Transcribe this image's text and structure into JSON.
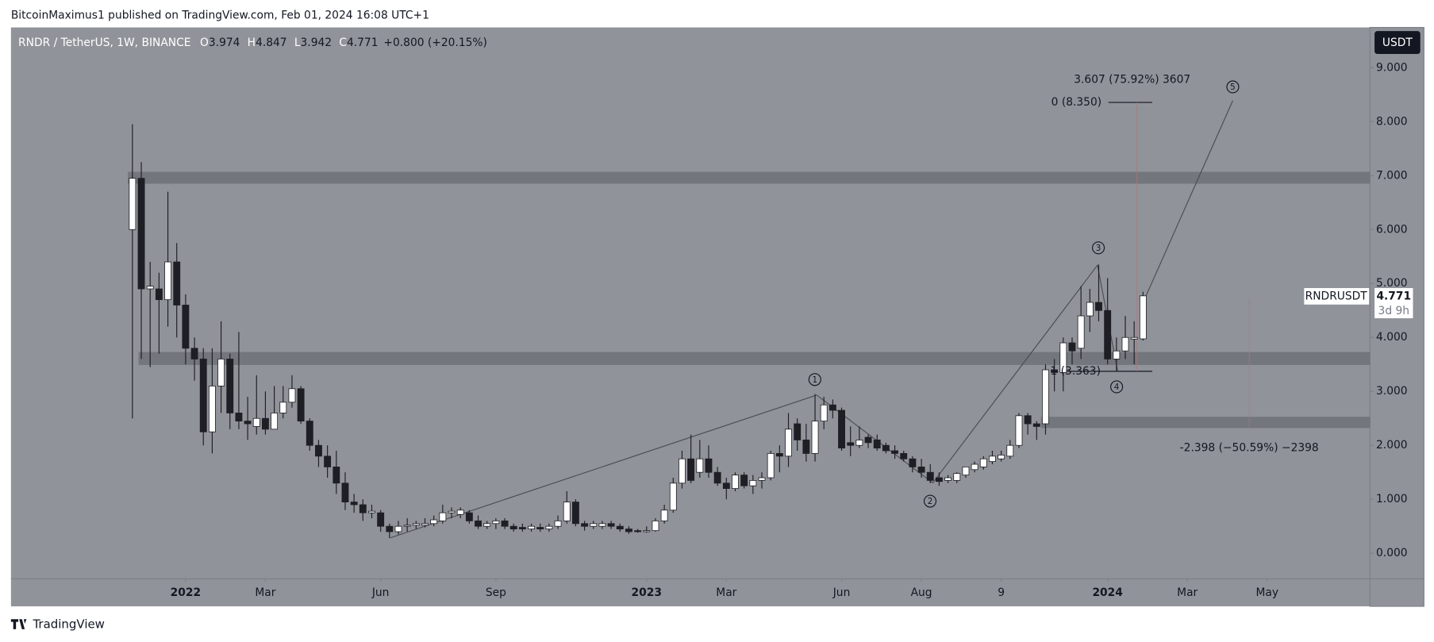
{
  "publisher": "BitcoinMaximus1 published on TradingView.com, Feb 01, 2024 16:08 UTC+1",
  "brand": "TradingView",
  "chart_data": {
    "type": "candlestick",
    "symbol": "RNDR / TetherUS, 1W, BINANCE",
    "header": [
      {
        "label": "O",
        "value": "3.974"
      },
      {
        "label": "H",
        "value": "4.847"
      },
      {
        "label": "L",
        "value": "3.942"
      },
      {
        "label": "C",
        "value": "4.771"
      }
    ],
    "change": "+0.800 (+20.15%)",
    "currency": "USDT",
    "ticker": "RNDRUSDT",
    "last_price": "4.771",
    "countdown": "3d 9h",
    "open": [
      6.0,
      6.95,
      4.9,
      4.9,
      4.7,
      5.4,
      4.6,
      3.8,
      3.6,
      2.25,
      3.1,
      3.6,
      2.6,
      2.45,
      2.35,
      2.5,
      2.3,
      2.6,
      2.8,
      3.05,
      2.45,
      2.0,
      1.8,
      1.6,
      1.3,
      0.95,
      0.9,
      0.75,
      0.75,
      0.5,
      0.4,
      0.5,
      0.52,
      0.52,
      0.55,
      0.6,
      0.75,
      0.72,
      0.75,
      0.6,
      0.5,
      0.55,
      0.6,
      0.5,
      0.48,
      0.45,
      0.48,
      0.45,
      0.5,
      0.6,
      0.95,
      0.55,
      0.5,
      0.5,
      0.55,
      0.5,
      0.45,
      0.42,
      0.4,
      0.42,
      0.6,
      0.8,
      1.3,
      1.75,
      1.5,
      1.75,
      1.5,
      1.3,
      1.2,
      1.45,
      1.25,
      1.35,
      1.4,
      1.85,
      1.8,
      2.4,
      2.1,
      1.85,
      2.45,
      2.75,
      2.65,
      2.05,
      2.0,
      2.15,
      2.1,
      2.0,
      1.9,
      1.85,
      1.75,
      1.6,
      1.5,
      1.4,
      1.35,
      1.35,
      1.45,
      1.55,
      1.6,
      1.7,
      1.75,
      1.8,
      2.0,
      2.55,
      2.4,
      2.4,
      3.4,
      3.35,
      3.9,
      3.8,
      4.4,
      4.65,
      4.5,
      3.6,
      3.75,
      3.97,
      3.974
    ],
    "high": [
      7.95,
      7.25,
      5.4,
      5.2,
      6.7,
      5.75,
      4.8,
      4.0,
      3.8,
      3.8,
      4.3,
      3.7,
      4.1,
      2.9,
      3.3,
      3.0,
      3.1,
      3.1,
      3.3,
      3.1,
      2.5,
      2.1,
      2.0,
      1.9,
      1.5,
      1.1,
      1.0,
      0.9,
      0.8,
      0.55,
      0.6,
      0.65,
      0.6,
      0.65,
      0.7,
      0.9,
      0.85,
      0.85,
      0.8,
      0.7,
      0.6,
      0.65,
      0.65,
      0.55,
      0.55,
      0.55,
      0.55,
      0.55,
      0.7,
      1.15,
      1.0,
      0.6,
      0.6,
      0.6,
      0.6,
      0.55,
      0.5,
      0.45,
      0.5,
      0.65,
      0.9,
      1.4,
      1.9,
      2.2,
      2.1,
      2.0,
      1.6,
      1.4,
      1.5,
      1.5,
      1.45,
      1.5,
      1.9,
      2.0,
      2.6,
      2.5,
      2.4,
      2.95,
      2.9,
      2.85,
      2.7,
      2.35,
      2.35,
      2.2,
      2.2,
      2.05,
      2.0,
      1.9,
      1.8,
      1.75,
      1.65,
      1.5,
      1.45,
      1.5,
      1.6,
      1.7,
      1.8,
      1.9,
      1.9,
      2.1,
      2.6,
      2.6,
      2.45,
      3.5,
      3.6,
      4.0,
      4.0,
      4.95,
      4.9,
      5.35,
      5.1,
      4.0,
      4.4,
      4.3,
      4.847
    ],
    "low": [
      2.5,
      3.6,
      3.45,
      3.7,
      4.2,
      4.0,
      3.5,
      3.2,
      2.0,
      1.85,
      2.6,
      2.3,
      2.3,
      2.1,
      2.2,
      2.2,
      2.3,
      2.5,
      2.7,
      2.4,
      1.9,
      1.6,
      1.4,
      1.1,
      0.8,
      0.75,
      0.6,
      0.65,
      0.4,
      0.28,
      0.35,
      0.4,
      0.45,
      0.48,
      0.5,
      0.55,
      0.65,
      0.65,
      0.55,
      0.45,
      0.45,
      0.45,
      0.45,
      0.4,
      0.4,
      0.4,
      0.4,
      0.4,
      0.45,
      0.55,
      0.5,
      0.42,
      0.45,
      0.45,
      0.45,
      0.4,
      0.36,
      0.38,
      0.38,
      0.4,
      0.55,
      0.75,
      1.2,
      1.3,
      1.4,
      1.4,
      1.25,
      1.0,
      1.15,
      1.2,
      1.1,
      1.2,
      1.35,
      1.5,
      1.6,
      1.9,
      1.7,
      1.7,
      2.3,
      2.5,
      1.9,
      1.8,
      1.95,
      1.95,
      1.9,
      1.85,
      1.75,
      1.7,
      1.5,
      1.4,
      1.3,
      1.25,
      1.3,
      1.3,
      1.4,
      1.5,
      1.55,
      1.65,
      1.7,
      1.75,
      1.95,
      2.2,
      2.1,
      2.2,
      3.0,
      3.0,
      3.5,
      3.6,
      4.1,
      4.3,
      3.5,
      3.363,
      3.6,
      3.5,
      3.942
    ],
    "close": [
      6.95,
      4.9,
      4.95,
      4.7,
      5.4,
      4.6,
      3.8,
      3.6,
      2.25,
      3.1,
      3.6,
      2.6,
      2.45,
      2.4,
      2.5,
      2.3,
      2.6,
      2.8,
      3.05,
      2.45,
      2.0,
      1.8,
      1.6,
      1.3,
      0.95,
      0.9,
      0.75,
      0.78,
      0.5,
      0.4,
      0.5,
      0.52,
      0.55,
      0.55,
      0.62,
      0.75,
      0.78,
      0.8,
      0.6,
      0.5,
      0.55,
      0.6,
      0.5,
      0.45,
      0.45,
      0.5,
      0.45,
      0.5,
      0.6,
      0.95,
      0.55,
      0.5,
      0.55,
      0.55,
      0.5,
      0.45,
      0.4,
      0.4,
      0.42,
      0.6,
      0.8,
      1.3,
      1.75,
      1.35,
      1.75,
      1.5,
      1.3,
      1.2,
      1.45,
      1.25,
      1.35,
      1.4,
      1.85,
      1.8,
      2.3,
      2.1,
      1.85,
      2.45,
      2.75,
      2.65,
      1.95,
      2.0,
      2.1,
      2.05,
      1.95,
      1.9,
      1.85,
      1.75,
      1.6,
      1.5,
      1.35,
      1.33,
      1.4,
      1.48,
      1.6,
      1.65,
      1.75,
      1.8,
      1.82,
      2.0,
      2.55,
      2.4,
      2.35,
      3.4,
      3.35,
      3.9,
      3.75,
      4.4,
      4.65,
      4.5,
      3.6,
      3.75,
      4.0,
      4.0,
      4.771
    ],
    "up_color": "#ffffff",
    "down_color": "#1e1f24",
    "zones": [
      [
        6.85,
        7.07
      ],
      [
        3.49,
        3.73
      ],
      [
        2.32,
        2.53
      ]
    ],
    "ylim": [
      -0.475,
      9.746
    ],
    "yticks": [
      {
        "value": 0,
        "label": "0.000"
      },
      {
        "value": 1,
        "label": "1.000"
      },
      {
        "value": 2,
        "label": "2.000"
      },
      {
        "value": 3,
        "label": "3.000"
      },
      {
        "value": 4,
        "label": "4.000"
      },
      {
        "value": 5,
        "label": "5.000"
      },
      {
        "value": 6,
        "label": "6.000"
      },
      {
        "value": 7,
        "label": "7.000"
      },
      {
        "value": 8,
        "label": "8.000"
      },
      {
        "value": 9,
        "label": "9.000"
      }
    ],
    "xlim": [
      -13.7,
      139.6
    ],
    "xticks": [
      {
        "value": 6,
        "label": "2022"
      },
      {
        "value": 15,
        "label": "Mar"
      },
      {
        "value": 28,
        "label": "Jun"
      },
      {
        "value": 41,
        "label": "Sep"
      },
      {
        "value": 58,
        "label": "2023"
      },
      {
        "value": 67,
        "label": "Mar"
      },
      {
        "value": 80,
        "label": "Jun"
      },
      {
        "value": 89,
        "label": "Aug"
      },
      {
        "value": 98,
        "label": "9"
      },
      {
        "value": 110,
        "label": "2024"
      },
      {
        "value": 119,
        "label": "Mar"
      },
      {
        "value": 128,
        "label": "May"
      }
    ],
    "annotations": [
      "3.607 (75.92%) 3607",
      "0 (8.350)",
      "1 (3.363)",
      "-2.398 (−50.59%) −2398"
    ],
    "waves": [
      "1",
      "2",
      "3",
      "4",
      "5"
    ]
  }
}
